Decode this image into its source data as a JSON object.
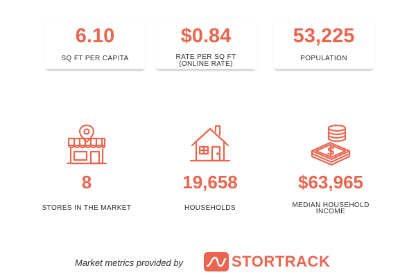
{
  "cards": [
    {
      "value": "6.10",
      "label": "SQ FT PER CAPITA"
    },
    {
      "value": "$0.84",
      "label": "RATE PER SQ FT\n(ONLINE RATE)"
    },
    {
      "value": "53,225",
      "label": "POPULATION"
    }
  ],
  "metrics": [
    {
      "icon": "storefront-location-icon",
      "value": "8",
      "label": "STORES IN THE MARKET"
    },
    {
      "icon": "house-icon",
      "value": "19,658",
      "label": "HOUSEHOLDS"
    },
    {
      "icon": "money-coins-icon",
      "value": "$63,965",
      "label": "MEDIAN HOUSEHOLD\nINCOME"
    }
  ],
  "footer": {
    "text": "Market metrics provided by",
    "brand_part1": "STOR",
    "brand_part2": "TRACK"
  },
  "colors": {
    "accent": "#e8664f",
    "text": "#2b2b2b"
  }
}
